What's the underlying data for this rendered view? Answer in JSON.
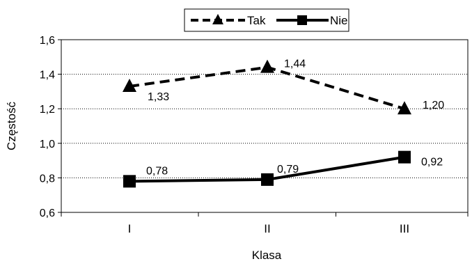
{
  "chart_data": {
    "type": "line",
    "categories": [
      "I",
      "II",
      "III"
    ],
    "series": [
      {
        "name": "Tak",
        "values": [
          1.33,
          1.44,
          1.2
        ],
        "labels": [
          "1,33",
          "1,44",
          "1,20"
        ],
        "line_style": "dashed",
        "marker": "triangle",
        "color": "#000000"
      },
      {
        "name": "Nie",
        "values": [
          0.78,
          0.79,
          0.92
        ],
        "labels": [
          "0,78",
          "0,79",
          "0,92"
        ],
        "line_style": "solid",
        "marker": "square",
        "color": "#000000"
      }
    ],
    "xlabel": "Klasa",
    "ylabel": "Częstość",
    "ylim": [
      0.6,
      1.6
    ],
    "yticks": [
      {
        "value": 0.6,
        "label": "0,6"
      },
      {
        "value": 0.8,
        "label": "0,8"
      },
      {
        "value": 1.0,
        "label": "1,0"
      },
      {
        "value": 1.2,
        "label": "1,2"
      },
      {
        "value": 1.4,
        "label": "1,4"
      },
      {
        "value": 1.6,
        "label": "1,6"
      }
    ],
    "grid": "horizontal-dotted",
    "legend_position": "top-center"
  }
}
